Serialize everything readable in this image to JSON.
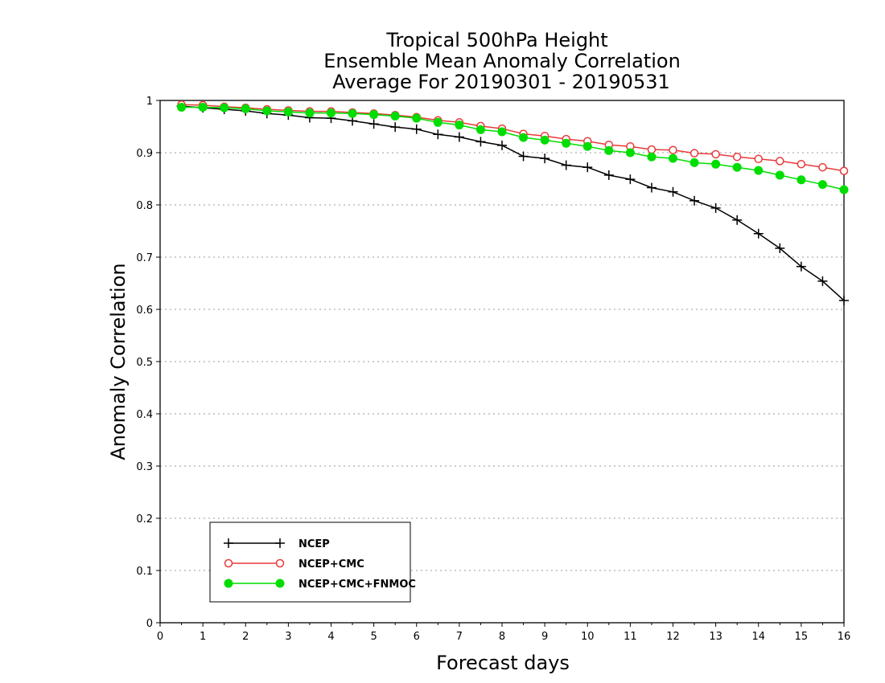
{
  "chart_data": {
    "type": "line",
    "title": [
      "Tropical 500hPa Height",
      "Ensemble Mean Anomaly Correlation",
      "Average For 20190301 - 20190531"
    ],
    "xlabel": "Forecast days",
    "ylabel": "Anomaly Correlation",
    "xlim": [
      0,
      16
    ],
    "ylim": [
      0,
      1
    ],
    "xticks": [
      0,
      1,
      2,
      3,
      4,
      5,
      6,
      7,
      8,
      9,
      10,
      11,
      12,
      13,
      14,
      15,
      16
    ],
    "yticks": [
      0,
      0.1,
      0.2,
      0.3,
      0.4,
      0.5,
      0.6,
      0.7,
      0.8,
      0.9,
      1
    ],
    "grid": "horizontal dotted",
    "legend_position": "bottom-left",
    "x": [
      0.5,
      1,
      1.5,
      2,
      2.5,
      3,
      3.5,
      4,
      4.5,
      5,
      5.5,
      6,
      6.5,
      7,
      7.5,
      8,
      8.5,
      9,
      9.5,
      10,
      10.5,
      11,
      11.5,
      12,
      12.5,
      13,
      13.5,
      14,
      14.5,
      15,
      15.5,
      16
    ],
    "series": [
      {
        "name": "NCEP",
        "color": "#000000",
        "marker": "plus",
        "values": [
          0.989,
          0.986,
          0.983,
          0.98,
          0.975,
          0.972,
          0.967,
          0.966,
          0.961,
          0.955,
          0.949,
          0.945,
          0.935,
          0.93,
          0.921,
          0.914,
          0.893,
          0.889,
          0.876,
          0.872,
          0.857,
          0.849,
          0.833,
          0.825,
          0.808,
          0.794,
          0.771,
          0.745,
          0.717,
          0.682,
          0.654,
          0.617
        ]
      },
      {
        "name": "NCEP+CMC",
        "color": "#e83a3a",
        "marker": "open-circle",
        "values": [
          0.992,
          0.991,
          0.988,
          0.986,
          0.983,
          0.981,
          0.979,
          0.979,
          0.977,
          0.975,
          0.972,
          0.968,
          0.962,
          0.958,
          0.951,
          0.946,
          0.936,
          0.932,
          0.926,
          0.922,
          0.915,
          0.912,
          0.906,
          0.905,
          0.899,
          0.897,
          0.892,
          0.888,
          0.884,
          0.878,
          0.872,
          0.865
        ]
      },
      {
        "name": "NCEP+CMC+FNMOC",
        "color": "#00dd00",
        "marker": "filled-circle",
        "values": [
          0.987,
          0.987,
          0.986,
          0.984,
          0.98,
          0.978,
          0.976,
          0.976,
          0.975,
          0.973,
          0.97,
          0.966,
          0.958,
          0.953,
          0.944,
          0.94,
          0.929,
          0.924,
          0.918,
          0.912,
          0.904,
          0.9,
          0.892,
          0.889,
          0.881,
          0.878,
          0.872,
          0.866,
          0.857,
          0.848,
          0.839,
          0.829
        ]
      }
    ]
  }
}
